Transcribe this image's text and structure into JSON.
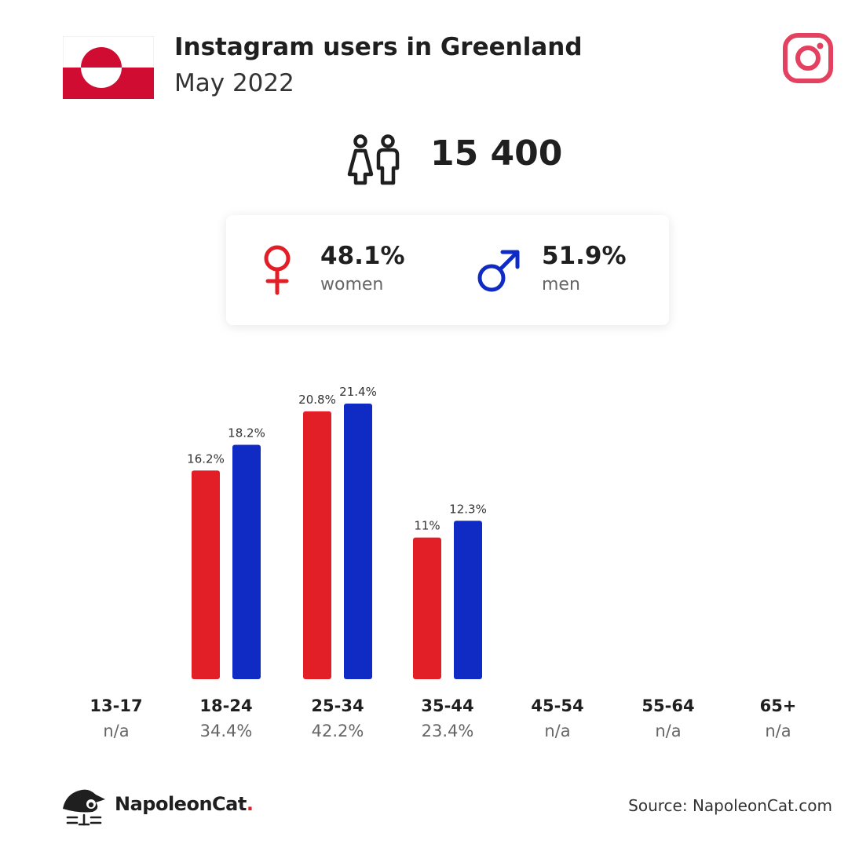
{
  "header": {
    "title": "Instagram users in Greenland",
    "subtitle": "May 2022"
  },
  "total": {
    "value": "15 400"
  },
  "gender": {
    "women_pct": "48.1%",
    "women_label": "women",
    "men_pct": "51.9%",
    "men_label": "men"
  },
  "icons": {
    "flag": "greenland-flag-icon",
    "brand": "instagram-icon",
    "total": "people-icon",
    "female": "female-symbol-icon",
    "male": "male-symbol-icon",
    "logo": "napoleoncat-logo"
  },
  "colors": {
    "women": "#e21e26",
    "men": "#0f2bc4",
    "instagram": "#e4405f",
    "flag_red": "#d00c33"
  },
  "chart_data": {
    "type": "bar",
    "categories": [
      "13-17",
      "18-24",
      "25-34",
      "35-44",
      "45-54",
      "55-64",
      "65+"
    ],
    "totals": [
      "n/a",
      "34.4%",
      "42.2%",
      "23.4%",
      "n/a",
      "n/a",
      "n/a"
    ],
    "series": [
      {
        "values": [
          null,
          16.2,
          20.8,
          11,
          null,
          null,
          null
        ],
        "labels": [
          "",
          "16.2%",
          "20.8%",
          "11%",
          "",
          "",
          ""
        ],
        "color": "#e21e26"
      },
      {
        "values": [
          null,
          18.2,
          21.4,
          12.3,
          null,
          null,
          null
        ],
        "labels": [
          "",
          "18.2%",
          "21.4%",
          "12.3%",
          "",
          "",
          ""
        ],
        "color": "#0f2bc4"
      }
    ],
    "ylim": [
      0,
      21.4
    ],
    "grid": false
  },
  "footer": {
    "brand_name": "NapoleonCat",
    "brand_dot": ".",
    "source": "Source: NapoleonCat.com"
  }
}
